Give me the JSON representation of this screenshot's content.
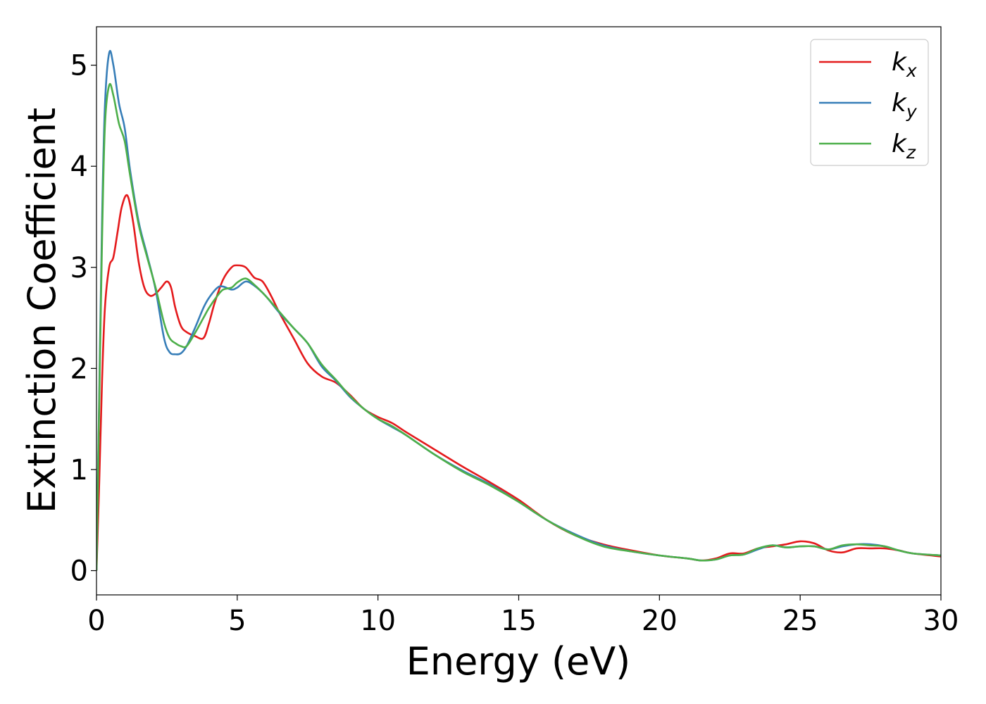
{
  "chart_data": {
    "type": "line",
    "title": "",
    "xlabel": "Energy (eV)",
    "ylabel": "Extinction Coefficient",
    "xlim": [
      0,
      30
    ],
    "ylim": [
      -0.24,
      5.38
    ],
    "xticks": [
      "0",
      "5",
      "10",
      "15",
      "20",
      "25",
      "30"
    ],
    "yticks": [
      "0",
      "1",
      "2",
      "3",
      "4",
      "5"
    ],
    "grid": false,
    "legend_position": "top-right",
    "series": [
      {
        "name": "k",
        "subscript": "x",
        "color": "#e41a1c",
        "x": [
          0,
          0.1,
          0.2,
          0.3,
          0.45,
          0.6,
          0.75,
          0.9,
          1.1,
          1.3,
          1.5,
          1.7,
          1.9,
          2.1,
          2.3,
          2.5,
          2.65,
          2.8,
          3.0,
          3.2,
          3.5,
          3.8,
          4.0,
          4.2,
          4.5,
          4.8,
          5.0,
          5.3,
          5.6,
          5.9,
          6.2,
          6.5,
          7.0,
          7.5,
          8.0,
          8.5,
          9.0,
          9.5,
          10.0,
          10.5,
          11.0,
          12.0,
          13.0,
          14.0,
          15.0,
          16.0,
          17.0,
          18.0,
          19.0,
          20.0,
          21.0,
          21.5,
          22.0,
          22.5,
          23.0,
          23.5,
          24.0,
          24.5,
          25.0,
          25.5,
          26.0,
          26.5,
          27.0,
          27.5,
          28.0,
          28.5,
          29.0,
          30.0
        ],
        "y": [
          0.0,
          0.9,
          1.9,
          2.6,
          3.0,
          3.1,
          3.35,
          3.6,
          3.71,
          3.45,
          3.05,
          2.8,
          2.72,
          2.74,
          2.8,
          2.86,
          2.8,
          2.6,
          2.42,
          2.36,
          2.32,
          2.3,
          2.45,
          2.65,
          2.88,
          3.0,
          3.02,
          3.0,
          2.9,
          2.86,
          2.72,
          2.55,
          2.3,
          2.05,
          1.92,
          1.86,
          1.74,
          1.6,
          1.52,
          1.46,
          1.37,
          1.2,
          1.03,
          0.87,
          0.7,
          0.5,
          0.35,
          0.26,
          0.2,
          0.15,
          0.12,
          0.1,
          0.12,
          0.17,
          0.17,
          0.22,
          0.24,
          0.26,
          0.29,
          0.27,
          0.2,
          0.18,
          0.22,
          0.22,
          0.22,
          0.2,
          0.17,
          0.14
        ]
      },
      {
        "name": "k",
        "subscript": "y",
        "color": "#377eb8",
        "x": [
          0,
          0.1,
          0.2,
          0.3,
          0.45,
          0.6,
          0.8,
          1.0,
          1.2,
          1.5,
          1.8,
          2.1,
          2.4,
          2.6,
          2.8,
          3.0,
          3.2,
          3.5,
          3.8,
          4.0,
          4.3,
          4.5,
          4.8,
          5.0,
          5.3,
          5.6,
          6.0,
          6.5,
          7.0,
          7.5,
          8.0,
          8.5,
          9.0,
          9.5,
          10.0,
          10.5,
          11.0,
          12.0,
          13.0,
          14.0,
          15.0,
          16.0,
          17.0,
          18.0,
          19.0,
          20.0,
          21.0,
          21.5,
          22.0,
          22.5,
          23.0,
          23.5,
          24.0,
          24.5,
          25.0,
          25.5,
          26.0,
          26.5,
          27.0,
          27.5,
          28.0,
          28.5,
          29.0,
          30.0
        ],
        "y": [
          0.0,
          1.8,
          3.5,
          4.6,
          5.12,
          5.0,
          4.62,
          4.38,
          3.95,
          3.45,
          3.12,
          2.78,
          2.3,
          2.16,
          2.14,
          2.15,
          2.22,
          2.4,
          2.6,
          2.7,
          2.8,
          2.81,
          2.78,
          2.8,
          2.86,
          2.82,
          2.72,
          2.55,
          2.4,
          2.25,
          2.02,
          1.88,
          1.72,
          1.6,
          1.5,
          1.42,
          1.34,
          1.15,
          0.99,
          0.85,
          0.68,
          0.5,
          0.36,
          0.25,
          0.19,
          0.15,
          0.12,
          0.1,
          0.11,
          0.15,
          0.16,
          0.21,
          0.25,
          0.23,
          0.24,
          0.24,
          0.21,
          0.24,
          0.26,
          0.26,
          0.24,
          0.2,
          0.17,
          0.15
        ]
      },
      {
        "name": "k",
        "subscript": "z",
        "color": "#4daf4a",
        "x": [
          0,
          0.1,
          0.2,
          0.3,
          0.45,
          0.6,
          0.8,
          1.0,
          1.2,
          1.5,
          1.8,
          2.1,
          2.4,
          2.6,
          2.8,
          3.0,
          3.2,
          3.5,
          3.8,
          4.0,
          4.3,
          4.5,
          4.8,
          5.0,
          5.3,
          5.6,
          6.0,
          6.5,
          7.0,
          7.5,
          8.0,
          8.5,
          9.0,
          9.5,
          10.0,
          10.5,
          11.0,
          12.0,
          13.0,
          14.0,
          15.0,
          16.0,
          17.0,
          18.0,
          19.0,
          20.0,
          21.0,
          21.5,
          22.0,
          22.5,
          23.0,
          23.5,
          24.0,
          24.5,
          25.0,
          25.5,
          26.0,
          26.5,
          27.0,
          27.5,
          28.0,
          28.5,
          29.0,
          30.0
        ],
        "y": [
          0.0,
          1.7,
          3.3,
          4.4,
          4.8,
          4.7,
          4.42,
          4.25,
          3.9,
          3.42,
          3.1,
          2.8,
          2.45,
          2.3,
          2.25,
          2.22,
          2.22,
          2.35,
          2.5,
          2.6,
          2.72,
          2.78,
          2.8,
          2.85,
          2.89,
          2.83,
          2.72,
          2.56,
          2.4,
          2.25,
          2.04,
          1.89,
          1.73,
          1.6,
          1.5,
          1.43,
          1.34,
          1.15,
          0.98,
          0.84,
          0.68,
          0.5,
          0.35,
          0.24,
          0.19,
          0.15,
          0.12,
          0.1,
          0.11,
          0.15,
          0.16,
          0.22,
          0.25,
          0.23,
          0.24,
          0.24,
          0.21,
          0.25,
          0.26,
          0.25,
          0.24,
          0.2,
          0.17,
          0.15
        ]
      }
    ]
  }
}
